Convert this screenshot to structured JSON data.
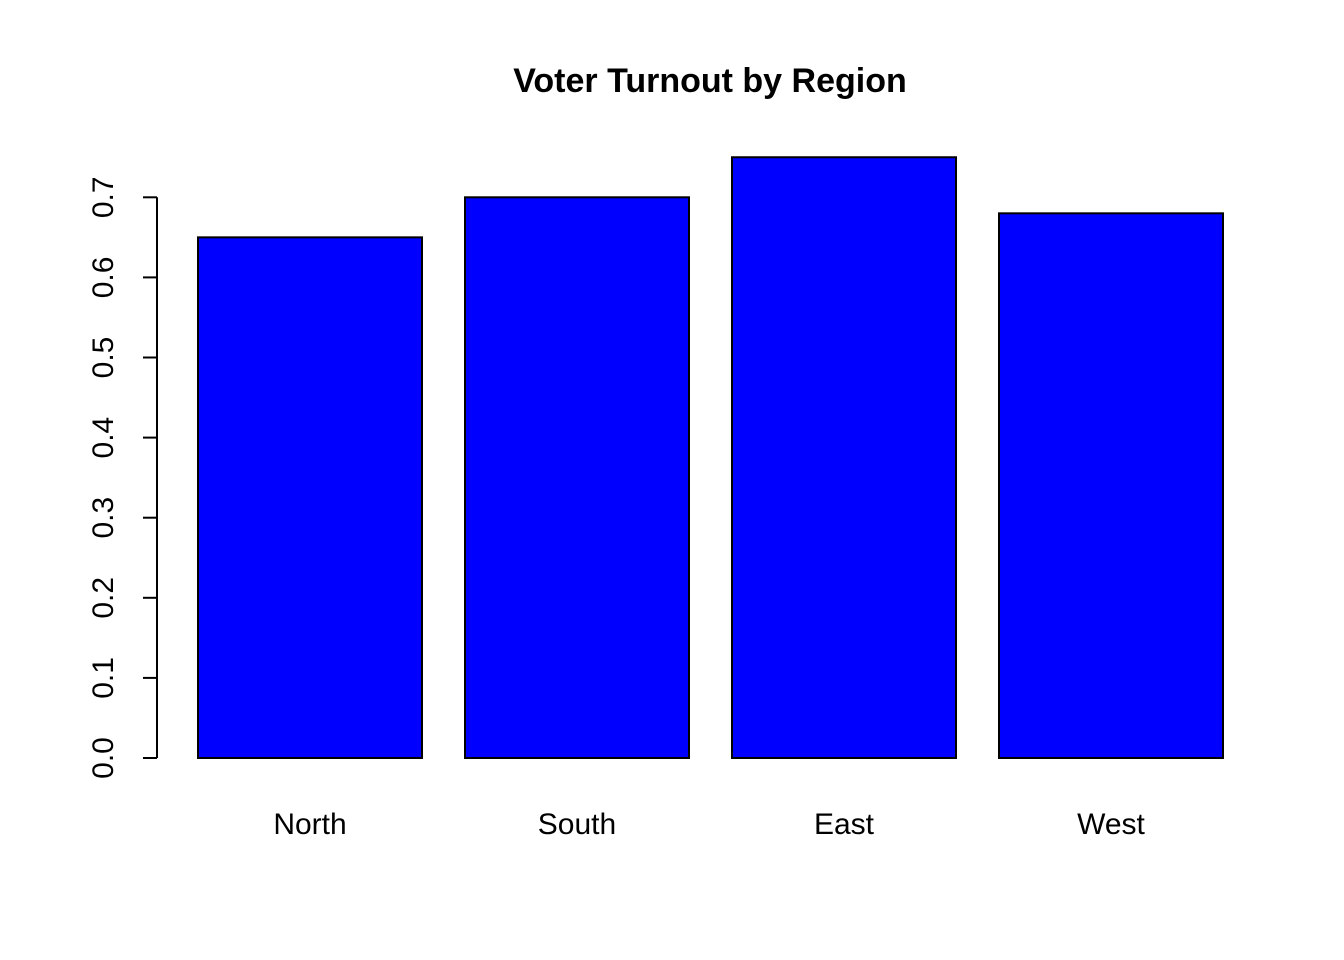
{
  "chart_data": {
    "type": "bar",
    "title": "Voter Turnout by Region",
    "xlabel": "",
    "ylabel": "",
    "categories": [
      "North",
      "South",
      "East",
      "West"
    ],
    "values": [
      0.65,
      0.7,
      0.75,
      0.68
    ],
    "ylim": [
      0,
      0.75
    ],
    "yticks": [
      0.0,
      0.1,
      0.2,
      0.3,
      0.4,
      0.5,
      0.6,
      0.7
    ],
    "ytick_labels": [
      "0.0",
      "0.1",
      "0.2",
      "0.3",
      "0.4",
      "0.5",
      "0.6",
      "0.7"
    ],
    "grid": false,
    "legend": "none",
    "bar_color": "#0000ff",
    "edge_color": "#000000"
  }
}
